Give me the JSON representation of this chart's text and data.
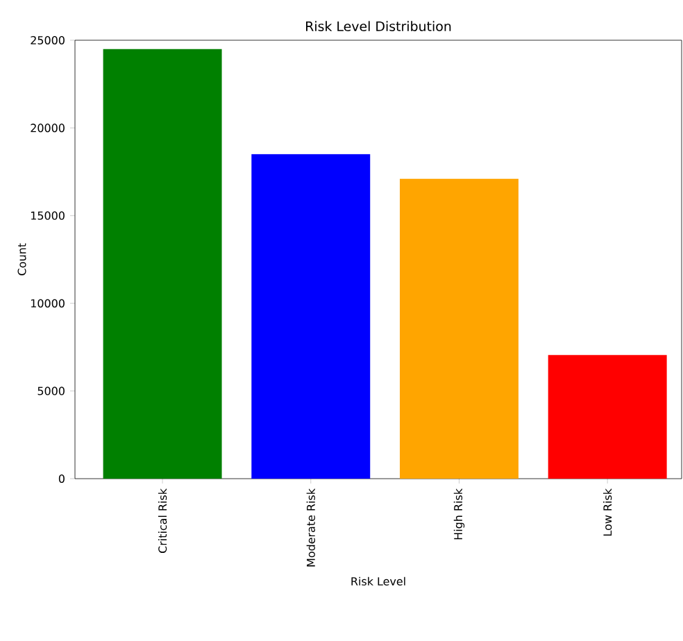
{
  "chart_data": {
    "type": "bar",
    "title": "Risk Level Distribution",
    "xlabel": "Risk Level",
    "ylabel": "Count",
    "categories": [
      "Critical Risk",
      "Moderate Risk",
      "High Risk",
      "Low Risk"
    ],
    "values": [
      24500,
      18500,
      17100,
      7050
    ],
    "colors": [
      "#008000",
      "#0000ff",
      "#ffa500",
      "#ff0000"
    ],
    "ylim": [
      0,
      25000
    ],
    "yticks": [
      0,
      5000,
      10000,
      15000,
      20000,
      25000
    ],
    "grid": false
  }
}
